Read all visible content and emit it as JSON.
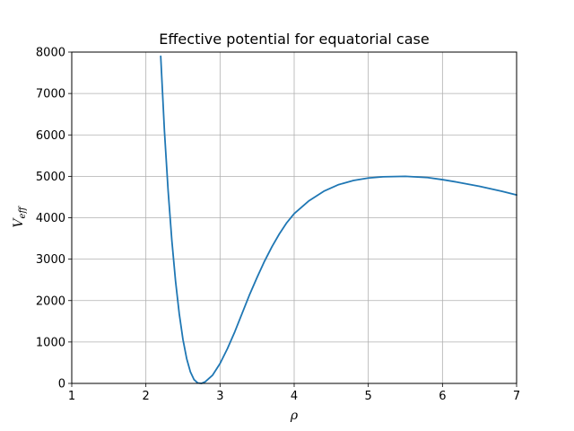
{
  "chart_data": {
    "type": "line",
    "title": "Effective potential for equatorial case",
    "xlabel": "ρ",
    "ylabel_main": "V",
    "ylabel_sub": "eff",
    "xlim": [
      1,
      7
    ],
    "ylim": [
      0,
      8000
    ],
    "xticks": [
      "1",
      "2",
      "3",
      "4",
      "5",
      "6",
      "7"
    ],
    "yticks": [
      "0",
      "1000",
      "2000",
      "3000",
      "4000",
      "5000",
      "6000",
      "7000",
      "8000"
    ],
    "grid": true,
    "line_color": "#1f77b4",
    "series": [
      {
        "x": [
          2.2,
          2.25,
          2.3,
          2.35,
          2.4,
          2.45,
          2.5,
          2.55,
          2.6,
          2.65,
          2.7,
          2.75,
          2.8,
          2.9,
          3.0,
          3.1,
          3.2,
          3.3,
          3.4,
          3.5,
          3.6,
          3.7,
          3.8,
          3.9,
          4.0,
          4.2,
          4.4,
          4.6,
          4.8,
          5.0,
          5.2,
          5.5,
          5.8,
          6.0,
          6.2,
          6.5,
          6.8,
          7.0
        ],
        "y": [
          7900,
          6100,
          4650,
          3450,
          2470,
          1680,
          1060,
          600,
          280,
          90,
          10,
          0,
          40,
          200,
          480,
          840,
          1250,
          1700,
          2150,
          2560,
          2950,
          3300,
          3610,
          3880,
          4100,
          4410,
          4640,
          4800,
          4900,
          4960,
          4990,
          5000,
          4970,
          4920,
          4860,
          4760,
          4640,
          4550
        ]
      }
    ]
  }
}
